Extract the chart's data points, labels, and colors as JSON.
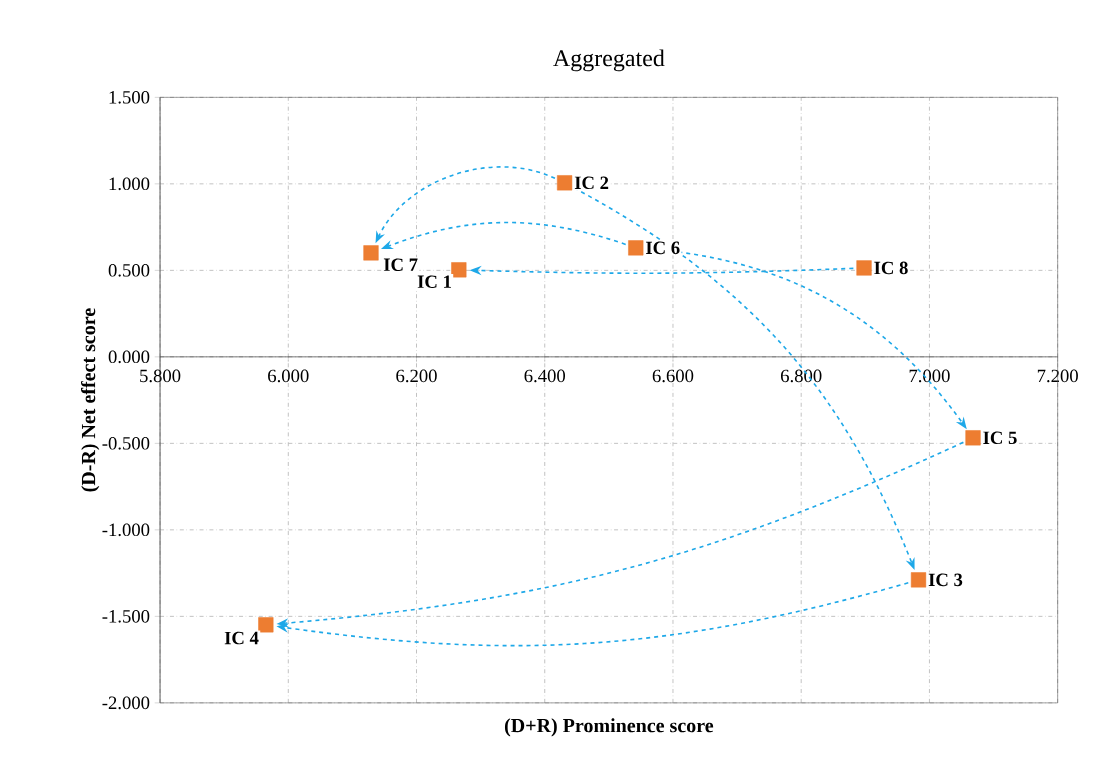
{
  "chart_data": {
    "type": "scatter",
    "title": "Aggregated",
    "xlabel": "(D+R) Prominence score",
    "ylabel": "(D-R) Net effect score",
    "series": [
      {
        "name": "IC 1",
        "color": "#ed7d31",
        "x": [
          6.266
        ],
        "values": [
          0.503
        ]
      },
      {
        "name": "IC 2",
        "color": "#ed7d31",
        "x": [
          6.431
        ],
        "values": [
          1.006
        ]
      },
      {
        "name": "IC 3",
        "color": "#ed7d31",
        "x": [
          6.983
        ],
        "values": [
          -1.289
        ]
      },
      {
        "name": "IC 4",
        "color": "#ed7d31",
        "x": [
          5.965
        ],
        "values": [
          -1.549
        ]
      },
      {
        "name": "IC 5",
        "color": "#ed7d31",
        "x": [
          7.068
        ],
        "values": [
          -0.468
        ]
      },
      {
        "name": "IC 6",
        "color": "#ed7d31",
        "x": [
          6.542
        ],
        "values": [
          0.63
        ]
      },
      {
        "name": "IC 7",
        "color": "#ed7d31",
        "x": [
          6.129
        ],
        "values": [
          0.601
        ]
      },
      {
        "name": "IC 8",
        "color": "#ed7d31",
        "x": [
          6.898
        ],
        "values": [
          0.514
        ]
      }
    ],
    "xlim": [
      5.8,
      7.2
    ],
    "xticks": [
      {
        "value": 5.8,
        "label": "5.800"
      },
      {
        "value": 6.0,
        "label": "6.000"
      },
      {
        "value": 6.2,
        "label": "6.200"
      },
      {
        "value": 6.4,
        "label": "6.400"
      },
      {
        "value": 6.6,
        "label": "6.600"
      },
      {
        "value": 6.8,
        "label": "6.800"
      },
      {
        "value": 7.0,
        "label": "7.000"
      },
      {
        "value": 7.2,
        "label": "7.200"
      }
    ],
    "ylim": [
      -2.0,
      1.5
    ],
    "yticks": [
      {
        "value": -2.0,
        "label": "-2.000"
      },
      {
        "value": -1.5,
        "label": "-1.500"
      },
      {
        "value": -1.0,
        "label": "-1.000"
      },
      {
        "value": -0.5,
        "label": "-0.500"
      },
      {
        "value": 0.0,
        "label": "0.000"
      },
      {
        "value": 0.5,
        "label": "0.500"
      },
      {
        "value": 1.0,
        "label": "1.000"
      },
      {
        "value": 1.5,
        "label": "1.500"
      }
    ],
    "grid": true,
    "legend": false,
    "marker": "square"
  }
}
